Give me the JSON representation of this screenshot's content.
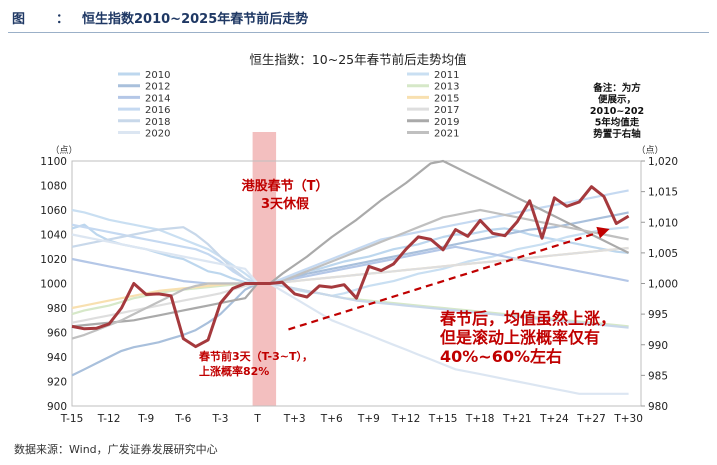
{
  "figure": {
    "label": "图",
    "colon": "：",
    "title": "恒生指数2010~2025年春节前后走势"
  },
  "source": "数据来源：Wind，广发证券发展研究中心",
  "chart_data": {
    "type": "line",
    "title": "恒生指数：10~25年春节前后走势均值",
    "x_tick_labels": [
      "T-15",
      "T-12",
      "T-9",
      "T-6",
      "T-3",
      "T",
      "T+3",
      "T+6",
      "T+9",
      "T+12",
      "T+15",
      "T+18",
      "T+21",
      "T+24",
      "T+27",
      "T+30"
    ],
    "x_range": [
      -15,
      31
    ],
    "left_axis": {
      "unit_label": "（点）",
      "ylim": [
        900,
        1100
      ],
      "ticks": [
        900,
        920,
        940,
        960,
        980,
        1000,
        1020,
        1040,
        1060,
        1080,
        1100
      ]
    },
    "right_axis": {
      "unit_label": "（点）",
      "ylim": [
        980,
        1020
      ],
      "ticks": [
        "980",
        "985",
        "990",
        "995",
        "1,000",
        "1,005",
        "1,010",
        "1,015",
        "1,020"
      ]
    },
    "holiday_band": {
      "label": "港股春节（T）",
      "sublabel": "3天休假",
      "x_from": -0.4,
      "x_to": 1.5,
      "color": "#f2b8b8"
    },
    "legend": [
      {
        "name": "2010",
        "color": "#bdd7ee"
      },
      {
        "name": "2011",
        "color": "#c9dff2"
      },
      {
        "name": "2012",
        "color": "#a9c0dc"
      },
      {
        "name": "2013",
        "color": "#d6e8c8"
      },
      {
        "name": "2014",
        "color": "#b4c7e7"
      },
      {
        "name": "2015",
        "color": "#f8e0b0"
      },
      {
        "name": "2016",
        "color": "#c5d9f1"
      },
      {
        "name": "2017",
        "color": "#dedede"
      },
      {
        "name": "2018",
        "color": "#c8d8ea"
      },
      {
        "name": "2019",
        "color": "#aaaaaa"
      },
      {
        "name": "2020",
        "color": "#dce6f2"
      },
      {
        "name": "2021",
        "color": "#c0c0c0"
      }
    ],
    "note": [
      "备注：为方",
      "便展示，",
      "2010~202",
      "5年均值走",
      "势置于右轴"
    ],
    "annotations": {
      "pre": [
        "春节前3天（T-3~T），",
        "上涨概率82%"
      ],
      "post": [
        "春节后，均值虽然上涨，",
        "但是滚动上涨概率仅有",
        "40%~60%左右"
      ]
    },
    "trend_arrow": {
      "from": [
        2.5,
        992.5
      ],
      "to": [
        28,
        1008.6
      ],
      "color": "#c00000"
    },
    "mean_series": {
      "axis": "right",
      "color": "#a5393d",
      "x": [
        -15,
        -14,
        -13,
        -12,
        -11,
        -10,
        -9,
        -8,
        -7,
        -6,
        -5,
        -4,
        -3,
        -2,
        -1,
        0,
        1,
        2,
        3,
        4,
        5,
        6,
        7,
        8,
        9,
        10,
        11,
        12,
        13,
        14,
        15,
        16,
        17,
        18,
        19,
        20,
        21,
        22,
        23,
        24,
        25,
        26,
        27,
        28,
        29,
        30
      ],
      "y": [
        993.0,
        992.6,
        992.7,
        993.4,
        996.0,
        1000.0,
        998.2,
        998.3,
        998.0,
        991.0,
        989.7,
        990.8,
        996.8,
        999.2,
        1000.0,
        1000.0,
        1000.0,
        1000.2,
        998.3,
        997.8,
        999.6,
        999.4,
        999.8,
        997.6,
        1002.8,
        1002.1,
        1003.2,
        1005.6,
        1007.6,
        1007.2,
        1005.5,
        1008.8,
        1007.7,
        1010.3,
        1008.2,
        1007.8,
        1010.1,
        1013.5,
        1007.4,
        1014.0,
        1012.6,
        1013.3,
        1015.8,
        1014.2,
        1009.8,
        1011.0
      ]
    },
    "year_series": [
      {
        "name": "2010",
        "color": "#bdd7ee",
        "y": [
          1045,
          1048,
          1040,
          1035,
          1032,
          1030,
          1028,
          1025,
          1022,
          1020,
          1015,
          1010,
          1008,
          1004,
          1001,
          1000,
          1000,
          1003,
          1008,
          1010,
          1012,
          1015,
          1018,
          1020,
          1022,
          1025,
          1028,
          1030,
          1032,
          1035,
          1038,
          1040,
          1040,
          1042,
          1044,
          1045,
          1043,
          1040,
          1038,
          1036,
          1034,
          1032,
          1030,
          1028,
          1026,
          1025
        ]
      },
      {
        "name": "2011",
        "color": "#c9dff2",
        "y": [
          1060,
          1058,
          1055,
          1052,
          1050,
          1048,
          1046,
          1044,
          1040,
          1036,
          1032,
          1028,
          1022,
          1015,
          1008,
          1000,
          1000,
          998,
          995,
          993,
          992,
          990,
          992,
          995,
          998,
          1000,
          1002,
          1005,
          1008,
          1010,
          1012,
          1015,
          1018,
          1020,
          1022,
          1025,
          1028,
          1030,
          1032,
          1035,
          1038,
          1040,
          1042,
          1044,
          1045,
          1046
        ]
      },
      {
        "name": "2012",
        "color": "#a9c0dc",
        "y": [
          925,
          930,
          935,
          940,
          945,
          948,
          950,
          952,
          955,
          958,
          962,
          968,
          975,
          985,
          995,
          1000,
          1000,
          1002,
          1005,
          1008,
          1010,
          1012,
          1014,
          1016,
          1018,
          1020,
          1022,
          1024,
          1026,
          1028,
          1030,
          1032,
          1034,
          1036,
          1038,
          1040,
          1042,
          1044,
          1045,
          1046,
          1048,
          1050,
          1052,
          1054,
          1056,
          1058
        ]
      },
      {
        "name": "2013",
        "color": "#d6e8c8",
        "y": [
          975,
          978,
          980,
          982,
          985,
          988,
          990,
          992,
          994,
          995,
          996,
          997,
          998,
          999,
          1000,
          1000,
          1000,
          998,
          996,
          994,
          992,
          990,
          988,
          987,
          986,
          985,
          984,
          983,
          982,
          981,
          980,
          979,
          978,
          977,
          976,
          975,
          974,
          973,
          972,
          971,
          970,
          969,
          968,
          967,
          966,
          965
        ]
      },
      {
        "name": "2014",
        "color": "#b4c7e7",
        "y": [
          1020,
          1018,
          1016,
          1014,
          1012,
          1010,
          1008,
          1006,
          1004,
          1002,
          1001,
          1000,
          1000,
          1000,
          1000,
          1000,
          1000,
          1002,
          1004,
          1006,
          1008,
          1010,
          1012,
          1014,
          1016,
          1018,
          1020,
          1022,
          1024,
          1026,
          1028,
          1030,
          1028,
          1026,
          1024,
          1022,
          1020,
          1018,
          1016,
          1014,
          1012,
          1010,
          1008,
          1006,
          1004,
          1002
        ]
      },
      {
        "name": "2015",
        "color": "#f8e0b0",
        "y": [
          980,
          982,
          984,
          986,
          988,
          990,
          992,
          994,
          995,
          996,
          997,
          998,
          999,
          1000,
          1000,
          1000,
          1000,
          1001,
          1002,
          1003,
          1004,
          1005,
          1006,
          1007,
          1008,
          1009,
          1010,
          1011,
          1012,
          1013,
          1014,
          1015,
          1016,
          1017,
          1018,
          1019,
          1020,
          1021,
          1022,
          1023,
          1024,
          1025,
          1026,
          1027,
          1028,
          1029
        ]
      },
      {
        "name": "2016",
        "color": "#c5d9f1",
        "y": [
          1048,
          1046,
          1044,
          1042,
          1040,
          1038,
          1036,
          1034,
          1032,
          1030,
          1028,
          1024,
          1018,
          1010,
          1004,
          1000,
          1000,
          1004,
          1008,
          1012,
          1016,
          1020,
          1024,
          1028,
          1032,
          1036,
          1038,
          1040,
          1042,
          1044,
          1046,
          1048,
          1050,
          1052,
          1054,
          1056,
          1058,
          1060,
          1062,
          1064,
          1066,
          1068,
          1070,
          1072,
          1074,
          1076
        ]
      },
      {
        "name": "2017",
        "color": "#dedede",
        "y": [
          968,
          970,
          972,
          974,
          976,
          978,
          980,
          982,
          984,
          986,
          988,
          990,
          992,
          995,
          998,
          1000,
          1000,
          1001,
          1002,
          1003,
          1004,
          1005,
          1006,
          1007,
          1008,
          1009,
          1010,
          1011,
          1012,
          1013,
          1014,
          1015,
          1016,
          1017,
          1018,
          1019,
          1020,
          1021,
          1022,
          1023,
          1024,
          1025,
          1026,
          1027,
          1028,
          1029
        ]
      },
      {
        "name": "2018",
        "color": "#c8d8ea",
        "y": [
          1030,
          1032,
          1034,
          1036,
          1038,
          1040,
          1042,
          1044,
          1045,
          1046,
          1040,
          1032,
          1022,
          1012,
          1004,
          1000,
          1000,
          998,
          996,
          994,
          992,
          990,
          988,
          986,
          985,
          984,
          983,
          982,
          981,
          980,
          979,
          978,
          977,
          976,
          975,
          974,
          973,
          972,
          971,
          970,
          969,
          968,
          967,
          966,
          965,
          964
        ]
      },
      {
        "name": "2019",
        "color": "#aaaaaa",
        "y": [
          965,
          966,
          967,
          968,
          969,
          970,
          972,
          974,
          976,
          978,
          980,
          982,
          984,
          986,
          988,
          1000,
          1000,
          1008,
          1015,
          1022,
          1030,
          1038,
          1045,
          1052,
          1060,
          1068,
          1075,
          1082,
          1090,
          1098,
          1100,
          1095,
          1090,
          1085,
          1080,
          1075,
          1070,
          1065,
          1060,
          1055,
          1050,
          1045,
          1040,
          1035,
          1030,
          1025
        ]
      },
      {
        "name": "2020",
        "color": "#dce6f2",
        "y": [
          1040,
          1038,
          1036,
          1034,
          1032,
          1030,
          1028,
          1026,
          1024,
          1022,
          1020,
          1018,
          1016,
          1014,
          1012,
          1000,
          1000,
          994,
          988,
          982,
          976,
          970,
          966,
          962,
          958,
          954,
          950,
          946,
          942,
          938,
          934,
          930,
          928,
          926,
          924,
          922,
          920,
          918,
          916,
          914,
          912,
          910,
          910,
          910,
          910,
          910
        ]
      },
      {
        "name": "2021",
        "color": "#c0c0c0",
        "y": [
          955,
          958,
          962,
          966,
          970,
          975,
          980,
          985,
          990,
          995,
          998,
          1000,
          1000,
          1000,
          1000,
          1000,
          1000,
          1002,
          1006,
          1010,
          1014,
          1018,
          1022,
          1026,
          1030,
          1034,
          1038,
          1042,
          1046,
          1050,
          1054,
          1056,
          1058,
          1060,
          1058,
          1056,
          1054,
          1052,
          1050,
          1048,
          1046,
          1044,
          1042,
          1040,
          1038,
          1036
        ]
      }
    ]
  }
}
